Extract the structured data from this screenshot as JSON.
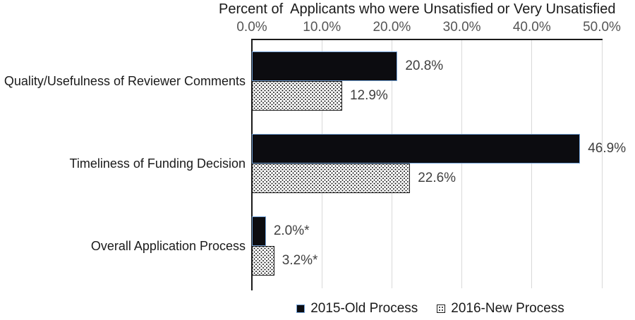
{
  "chart_data": {
    "type": "bar",
    "orientation": "horizontal",
    "title": "Percent of  Applicants who were Unsatisfied or Very Unsatisfied",
    "categories": [
      "Quality/Usefulness of Reviewer Comments",
      "Timeliness of Funding Decision",
      "Overall Application Process"
    ],
    "series": [
      {
        "name": "2015-Old Process",
        "style": "solid-black",
        "values": [
          20.8,
          46.9,
          2.0
        ],
        "labels": [
          "20.8%",
          "46.9%",
          "2.0%*"
        ]
      },
      {
        "name": "2016-New Process",
        "style": "dotted",
        "values": [
          12.9,
          22.6,
          3.2
        ],
        "labels": [
          "12.9%",
          "22.6%",
          "3.2%*"
        ]
      }
    ],
    "x_axis": {
      "ticks": [
        "0.0%",
        "10.0%",
        "20.0%",
        "30.0%",
        "40.0%",
        "50.0%"
      ],
      "tick_values": [
        0,
        10,
        20,
        30,
        40,
        50
      ],
      "min": 0,
      "max": 50,
      "grid": true
    },
    "legend": {
      "position": "bottom",
      "entries": [
        "2015-Old Process",
        "2016-New Process"
      ]
    }
  },
  "colors": {
    "bar_fill_2015": "#0c0c10",
    "bar_border_2015": "#74a2d8",
    "dotted_border": "#1a1a1a",
    "gridline": "#d9d9d9",
    "axis_line": "#1a1a1a",
    "tick_text": "#555555",
    "value_text": "#404040",
    "category_text": "#1a1a1a"
  }
}
